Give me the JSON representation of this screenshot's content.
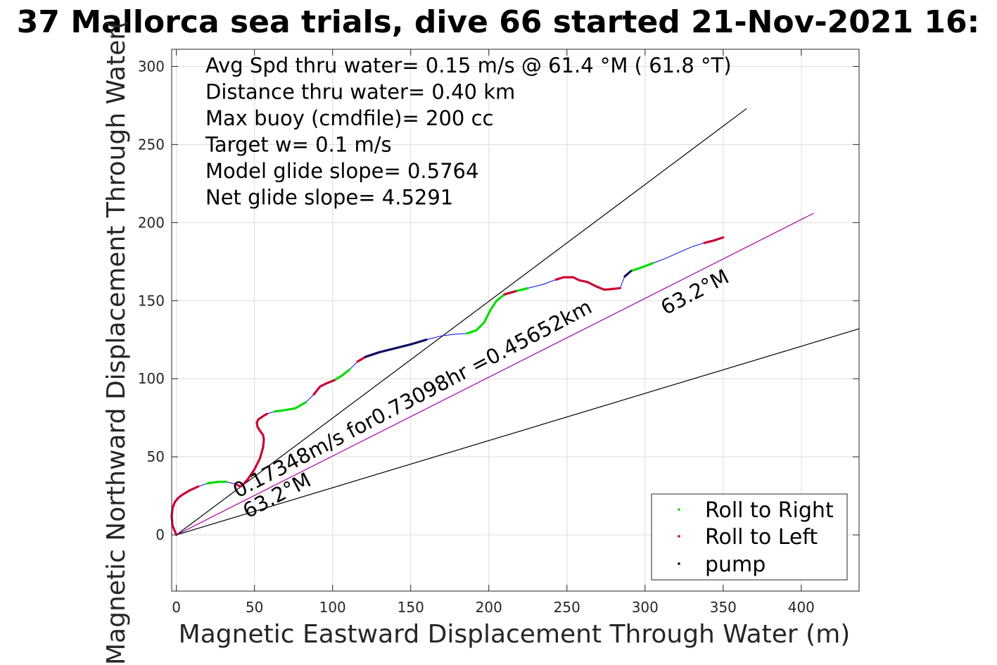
{
  "chart_data": {
    "type": "line",
    "title": "37 Mallorca sea trials, dive 66 started 21-Nov-2021 16:",
    "xlabel": "Magnetic Eastward Displacement Through Water (m)",
    "ylabel": "Magnetic Northward Displacement Through Water(",
    "xlim": [
      -3,
      437
    ],
    "ylim": [
      -36,
      311
    ],
    "xticks": [
      0,
      50,
      100,
      150,
      200,
      250,
      300,
      350,
      400
    ],
    "yticks": [
      0,
      50,
      100,
      150,
      200,
      250,
      300
    ],
    "grid": true,
    "info_lines": [
      "Avg Spd thru water=  0.15 m/s @  61.4 °M ( 61.8 °T)",
      "Distance thru water=  0.40 km",
      "Max buoy (cmdfile)= 200 cc",
      "Target w= 0.1 m/s",
      "Model glide slope= 0.5764",
      "Net glide slope= 4.5291"
    ],
    "legend": {
      "placement": "bottom-right",
      "entries": [
        {
          "label": "Roll to Right",
          "color": "#00dd00"
        },
        {
          "label": "Roll to Left",
          "color": "#cc0033"
        },
        {
          "label": "pump",
          "color": "#000000"
        }
      ]
    },
    "annotations": {
      "main": "0.17348m/s for0.73098hr =0.45652km",
      "angle_upper": "63.2°M",
      "angle_lower": "63.2°M"
    },
    "reference_lines": [
      {
        "name": "upper bound",
        "x": [
          0,
          365
        ],
        "y": [
          0,
          273
        ],
        "color": "#000000"
      },
      {
        "name": "lower bound",
        "x": [
          0,
          437
        ],
        "y": [
          0,
          132
        ],
        "color": "#000000"
      },
      {
        "name": "current",
        "x": [
          0,
          408
        ],
        "y": [
          0,
          206
        ],
        "color": "#aa00aa"
      }
    ],
    "track": {
      "color": "#0000ee",
      "x": [
        0,
        -2.5,
        -3,
        -2.5,
        -1,
        1,
        3.5,
        6,
        8.5,
        14,
        20,
        27,
        32,
        36,
        39,
        41,
        43,
        46,
        50,
        53.5,
        55.5,
        56,
        55.5,
        54,
        52,
        51.5,
        52.5,
        55.5,
        58,
        63,
        70,
        76,
        83,
        88,
        92,
        96,
        101,
        106,
        111,
        116,
        121,
        130,
        140,
        150,
        160,
        170,
        178,
        186,
        192,
        197,
        201,
        205,
        210,
        217,
        225,
        235,
        243,
        248,
        254,
        258,
        263,
        269,
        274,
        279,
        284,
        285.5,
        287,
        291,
        297,
        305,
        313,
        322,
        330,
        338,
        344,
        350
      ],
      "y": [
        0,
        6,
        12,
        17,
        21,
        23.5,
        25.5,
        27,
        28.5,
        31,
        33,
        34,
        34,
        33,
        32,
        31,
        32.5,
        36,
        42,
        49,
        56,
        61,
        64,
        66,
        69,
        72,
        74,
        76,
        77.5,
        79,
        80,
        81,
        85,
        90,
        95,
        97,
        99,
        102,
        106,
        111,
        114,
        117,
        119.5,
        122,
        125,
        127.5,
        128.5,
        129,
        131,
        136,
        144,
        150,
        154,
        156,
        158,
        160.5,
        163.5,
        165,
        165,
        163,
        162,
        159,
        157,
        157.5,
        158,
        162,
        165.5,
        169,
        171,
        174,
        177,
        181,
        184.5,
        187,
        188.5,
        190.5
      ],
      "roll_right_index_ranges": [
        [
          10,
          12
        ],
        [
          29,
          32
        ],
        [
          36,
          38
        ],
        [
          47,
          54
        ],
        [
          61,
          61
        ],
        [
          67,
          69
        ]
      ],
      "roll_left_index_ranges": [
        [
          0,
          9
        ],
        [
          14,
          28
        ],
        [
          33,
          36
        ],
        [
          39,
          41
        ],
        [
          52,
          53
        ],
        [
          56,
          64
        ],
        [
          73,
          75
        ]
      ],
      "pump_index_ranges": [
        [
          40,
          44
        ],
        [
          66,
          67
        ]
      ]
    }
  }
}
